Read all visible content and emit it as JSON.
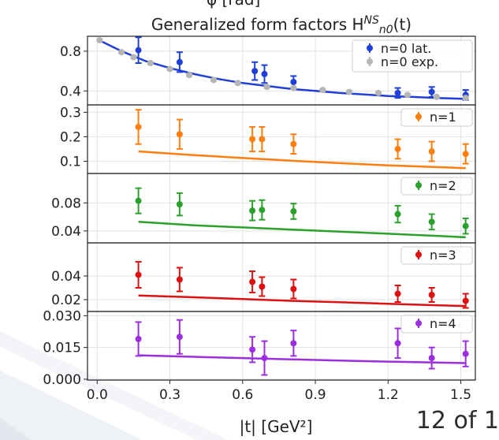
{
  "header": {
    "cut_text": "φ [rad]",
    "title_prefix": "Generalized form factors  H",
    "title_sup": "NS",
    "title_sub": "n0",
    "title_suffix": "(t)"
  },
  "footer": {
    "page_label": "12 of 1"
  },
  "chart_data": {
    "type": "scatter",
    "title": "Generalized form factors  H^NS_n0(t)",
    "xlabel": "|t| [GeV²]",
    "xlim": [
      -0.04,
      1.56
    ],
    "xticks": [
      0.0,
      0.3,
      0.6,
      0.9,
      1.2,
      1.5
    ],
    "xtick_labels": [
      "0.0",
      "0.3",
      "0.6",
      "0.9",
      "1.2",
      "1.5"
    ],
    "grid": true,
    "panels": [
      {
        "name": "n0",
        "ylim": [
          0.26,
          0.95
        ],
        "yticks": [
          0.4,
          0.8
        ],
        "ytick_labels": [
          "0.4",
          "0.8"
        ],
        "legend": [
          "n=0 lat.",
          "n=0 exp."
        ],
        "legend_loc": "upper right",
        "series": [
          {
            "name": "n=0 lat.",
            "color": "#1f3fd6",
            "x": [
              0.17,
              0.34,
              0.65,
              0.69,
              0.81,
              1.24,
              1.38,
              1.52
            ],
            "y": [
              0.81,
              0.69,
              0.6,
              0.57,
              0.49,
              0.38,
              0.39,
              0.36
            ],
            "err": [
              0.13,
              0.1,
              0.09,
              0.09,
              0.06,
              0.05,
              0.05,
              0.05
            ],
            "fit_x": [
              0.0,
              0.1,
              0.2,
              0.3,
              0.4,
              0.5,
              0.6,
              0.7,
              0.8,
              0.9,
              1.0,
              1.1,
              1.2,
              1.3,
              1.4,
              1.52
            ],
            "fit_y": [
              0.92,
              0.8,
              0.7,
              0.63,
              0.57,
              0.52,
              0.48,
              0.45,
              0.42,
              0.4,
              0.38,
              0.365,
              0.35,
              0.34,
              0.33,
              0.32
            ]
          },
          {
            "name": "n=0 exp.",
            "color": "#b5b5b5",
            "x": [
              0.01,
              0.1,
              0.15,
              0.22,
              0.3,
              0.38,
              0.48,
              0.58,
              0.7,
              0.81,
              0.93,
              1.04,
              1.16,
              1.28,
              1.4,
              1.52
            ],
            "y": [
              0.91,
              0.79,
              0.74,
              0.68,
              0.62,
              0.56,
              0.51,
              0.48,
              0.44,
              0.43,
              0.41,
              0.39,
              0.38,
              0.36,
              0.34,
              0.33
            ],
            "err": [
              0.01,
              0.01,
              0.01,
              0.01,
              0.01,
              0.01,
              0.01,
              0.01,
              0.01,
              0.01,
              0.01,
              0.01,
              0.01,
              0.01,
              0.01,
              0.01
            ]
          }
        ]
      },
      {
        "name": "n1",
        "ylim": [
          0.05,
          0.33
        ],
        "yticks": [
          0.1,
          0.2,
          0.3
        ],
        "ytick_labels": [
          "0.1",
          "0.2",
          "0.3"
        ],
        "legend": [
          "n=1"
        ],
        "legend_loc": "upper right",
        "series": [
          {
            "name": "n=1",
            "color": "#ff7f0e",
            "x": [
              0.17,
              0.34,
              0.64,
              0.68,
              0.81,
              1.24,
              1.38,
              1.52
            ],
            "y": [
              0.24,
              0.21,
              0.19,
              0.19,
              0.17,
              0.15,
              0.14,
              0.13
            ],
            "err": [
              0.07,
              0.06,
              0.05,
              0.05,
              0.04,
              0.04,
              0.04,
              0.04
            ],
            "fit_x": [
              0.17,
              0.4,
              0.6,
              0.8,
              1.0,
              1.2,
              1.4,
              1.52
            ],
            "fit_y": [
              0.14,
              0.125,
              0.113,
              0.102,
              0.092,
              0.083,
              0.076,
              0.072
            ]
          }
        ]
      },
      {
        "name": "n2",
        "ylim": [
          0.023,
          0.122
        ],
        "yticks": [
          0.04,
          0.08
        ],
        "ytick_labels": [
          "0.04",
          "0.08"
        ],
        "legend": [
          "n=2"
        ],
        "legend_loc": "upper right",
        "series": [
          {
            "name": "n=2",
            "color": "#2ca02c",
            "x": [
              0.17,
              0.34,
              0.64,
              0.68,
              0.81,
              1.24,
              1.38,
              1.52
            ],
            "y": [
              0.083,
              0.078,
              0.069,
              0.07,
              0.068,
              0.064,
              0.053,
              0.047
            ],
            "err": [
              0.018,
              0.016,
              0.014,
              0.014,
              0.011,
              0.012,
              0.011,
              0.011
            ],
            "fit_x": [
              0.17,
              0.4,
              0.6,
              0.8,
              1.0,
              1.2,
              1.4,
              1.52
            ],
            "fit_y": [
              0.053,
              0.048,
              0.045,
              0.042,
              0.039,
              0.036,
              0.033,
              0.031
            ]
          }
        ]
      },
      {
        "name": "n3",
        "ylim": [
          0.01,
          0.068
        ],
        "yticks": [
          0.02,
          0.04
        ],
        "ytick_labels": [
          "0.02",
          "0.04"
        ],
        "legend": [
          "n=3"
        ],
        "legend_loc": "upper right",
        "series": [
          {
            "name": "n=3",
            "color": "#dd1111",
            "x": [
              0.17,
              0.34,
              0.64,
              0.68,
              0.81,
              1.24,
              1.38,
              1.52
            ],
            "y": [
              0.041,
              0.037,
              0.035,
              0.031,
              0.029,
              0.025,
              0.024,
              0.019
            ],
            "err": [
              0.011,
              0.01,
              0.009,
              0.008,
              0.008,
              0.007,
              0.006,
              0.006
            ],
            "fit_x": [
              0.17,
              0.4,
              0.6,
              0.8,
              1.0,
              1.2,
              1.4,
              1.52
            ],
            "fit_y": [
              0.0235,
              0.022,
              0.0205,
              0.019,
              0.0178,
              0.0165,
              0.0153,
              0.0146
            ]
          }
        ]
      },
      {
        "name": "n4",
        "ylim": [
          -0.0004,
          0.032
        ],
        "yticks": [
          0.0,
          0.015,
          0.03
        ],
        "ytick_labels": [
          "0.000",
          "0.015",
          "0.030"
        ],
        "legend": [
          "n=4"
        ],
        "legend_loc": "upper right",
        "series": [
          {
            "name": "n=4",
            "color": "#9b2fe0",
            "x": [
              0.17,
              0.34,
              0.64,
              0.69,
              0.81,
              1.24,
              1.38,
              1.52
            ],
            "y": [
              0.019,
              0.02,
              0.014,
              0.01,
              0.017,
              0.017,
              0.01,
              0.012
            ],
            "err": [
              0.008,
              0.008,
              0.006,
              0.008,
              0.006,
              0.007,
              0.005,
              0.006
            ],
            "fit_x": [
              0.17,
              0.4,
              0.6,
              0.8,
              1.0,
              1.2,
              1.4,
              1.52
            ],
            "fit_y": [
              0.0113,
              0.0106,
              0.01,
              0.0094,
              0.0088,
              0.0083,
              0.0079,
              0.0076
            ]
          }
        ]
      }
    ]
  }
}
